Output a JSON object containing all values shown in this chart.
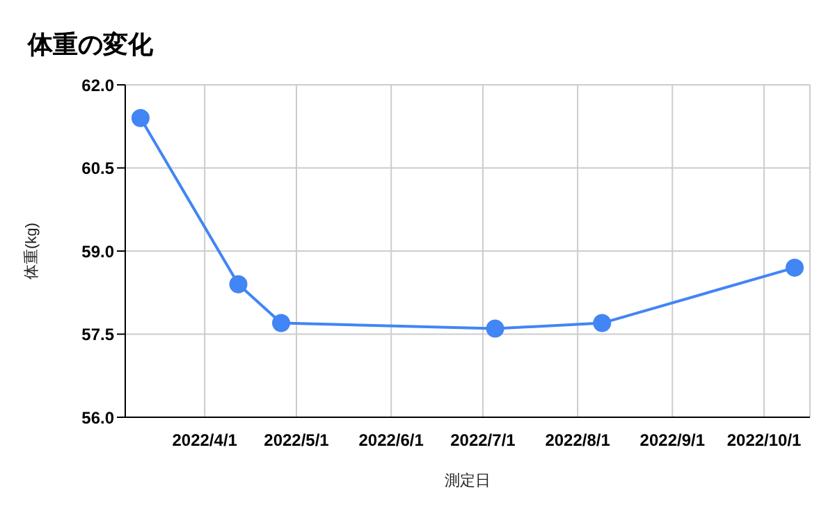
{
  "chart_data": {
    "type": "line",
    "title": "体重の変化",
    "xlabel": "測定日",
    "ylabel": "体重(kg)",
    "x": [
      "2022-03-11",
      "2022-04-12",
      "2022-04-26",
      "2022-07-05",
      "2022-08-09",
      "2022-10-11"
    ],
    "series": [
      {
        "color": "#4285f4",
        "values": [
          61.4,
          58.4,
          57.7,
          57.6,
          57.7,
          58.7
        ]
      }
    ],
    "xlim": [
      "2022-03-06",
      "2022-10-16"
    ],
    "xticks": [
      {
        "value": "2022-04-01",
        "label": "2022/4/1"
      },
      {
        "value": "2022-05-01",
        "label": "2022/5/1"
      },
      {
        "value": "2022-06-01",
        "label": "2022/6/1"
      },
      {
        "value": "2022-07-01",
        "label": "2022/7/1"
      },
      {
        "value": "2022-08-01",
        "label": "2022/8/1"
      },
      {
        "value": "2022-09-01",
        "label": "2022/9/1"
      },
      {
        "value": "2022-10-01",
        "label": "2022/10/1"
      }
    ],
    "ylim": [
      56,
      62
    ],
    "yticks": [
      {
        "value": 56,
        "label": "56.0"
      },
      57.5,
      {
        "value": 59,
        "label": "59.0"
      },
      60.5,
      {
        "value": 62,
        "label": "62.0"
      }
    ],
    "grid": true,
    "marker": "circle",
    "line_style": "solid"
  }
}
